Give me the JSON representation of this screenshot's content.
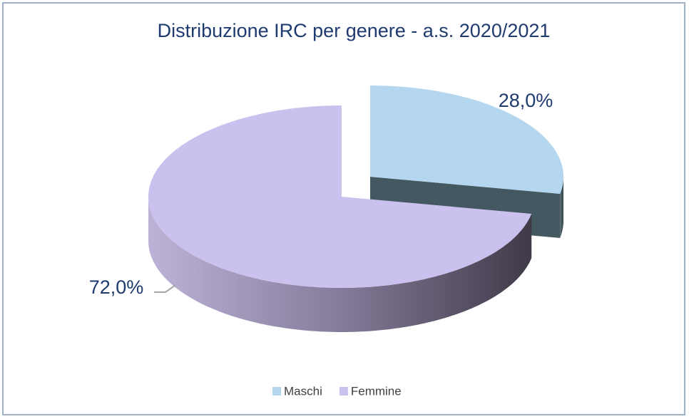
{
  "chart_data": {
    "type": "pie",
    "title": "Distribuzione IRC per genere - a.s. 2020/2021",
    "categories": [
      "Maschi",
      "Femmine"
    ],
    "values": [
      28,
      72
    ],
    "value_labels": [
      "28,0%",
      "72,0%"
    ],
    "colors": [
      "#b4d6ee",
      "#cbc1ee"
    ],
    "exploded": [
      true,
      false
    ],
    "legend": "bottom"
  }
}
